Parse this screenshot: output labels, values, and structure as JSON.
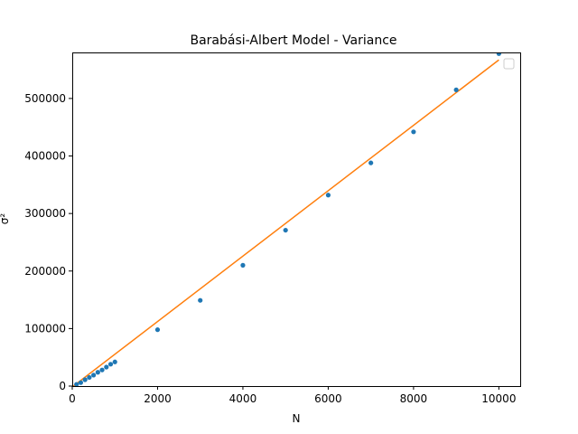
{
  "chart_data": {
    "type": "scatter",
    "title": "Barabási-Albert Model - Variance",
    "xlabel": "N",
    "ylabel": "σ²",
    "xlim": [
      0,
      10500
    ],
    "ylim": [
      0,
      580000
    ],
    "xticks": [
      0,
      2000,
      4000,
      6000,
      8000,
      10000
    ],
    "yticks": [
      0,
      100000,
      200000,
      300000,
      400000,
      500000
    ],
    "grid": false,
    "legend": {
      "placement": "top-right",
      "entries": []
    },
    "series": [
      {
        "kind": "scatter",
        "color": "#1f77b4",
        "x": [
          100,
          200,
          300,
          400,
          500,
          600,
          700,
          800,
          900,
          1000,
          2000,
          3000,
          4000,
          5000,
          6000,
          7000,
          8000,
          9000,
          10000
        ],
        "y": [
          3000,
          6000,
          11000,
          15000,
          19000,
          24000,
          28000,
          33000,
          38000,
          42000,
          98000,
          149000,
          210000,
          271000,
          332000,
          388000,
          442000,
          515000,
          578000
        ]
      },
      {
        "kind": "line",
        "color": "#ff7f0e",
        "x": [
          0,
          10000
        ],
        "y": [
          -1500,
          567000
        ]
      }
    ]
  }
}
